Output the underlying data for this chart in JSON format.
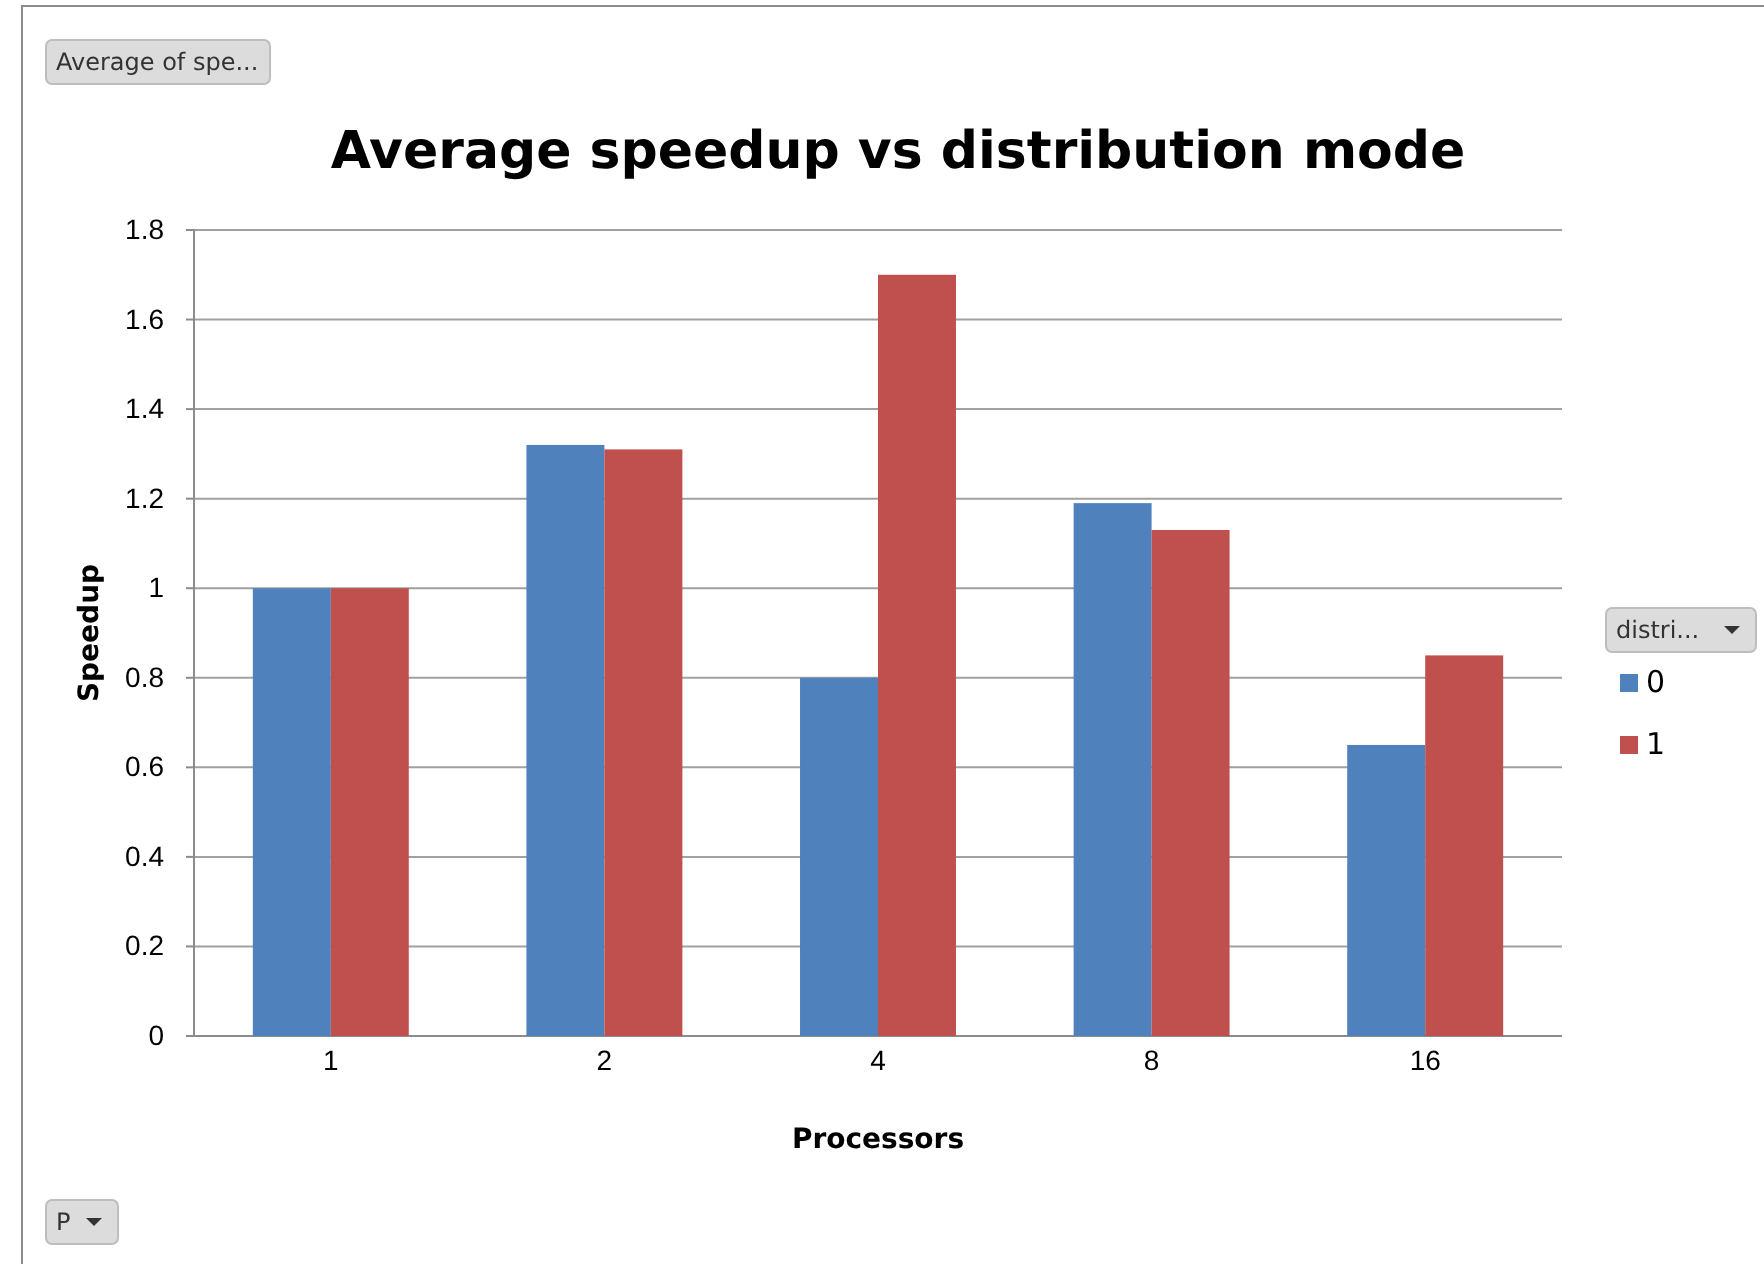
{
  "chart_data": {
    "type": "bar",
    "title": "Average speedup vs distribution mode",
    "xlabel": "Processors",
    "ylabel": "Speedup",
    "legend_title": "distri...",
    "categories": [
      "1",
      "2",
      "4",
      "8",
      "16"
    ],
    "series": [
      {
        "name": "0",
        "color": "#4f81bd",
        "values": [
          1.0,
          1.32,
          0.8,
          1.19,
          0.65
        ]
      },
      {
        "name": "1",
        "color": "#c0504d",
        "values": [
          1.0,
          1.31,
          1.7,
          1.13,
          0.85
        ]
      }
    ],
    "ylim": [
      0,
      1.8
    ],
    "yticks": [
      0,
      0.2,
      0.4,
      0.6,
      0.8,
      1,
      1.2,
      1.4,
      1.6,
      1.8
    ],
    "grid": "y",
    "legend": "right",
    "annotations": [
      "Average of spe...",
      "P"
    ]
  }
}
